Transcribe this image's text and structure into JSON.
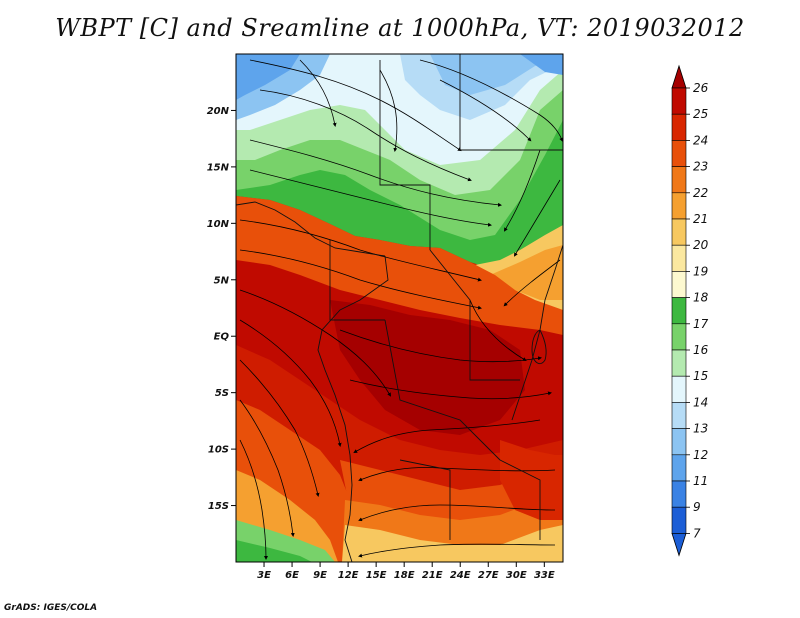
{
  "title": "WBPT [C] and Sreamline at 1000hPa, VT: 2019032012",
  "footer": "GrADS: IGES/COLA",
  "map": {
    "lon_range": [
      0,
      35
    ],
    "lat_range": [
      -20,
      25
    ],
    "lat_ticks": [
      {
        "value": 20,
        "label": "20N"
      },
      {
        "value": 15,
        "label": "15N"
      },
      {
        "value": 10,
        "label": "10N"
      },
      {
        "value": 5,
        "label": "5N"
      },
      {
        "value": 0,
        "label": "EQ"
      },
      {
        "value": -5,
        "label": "5S"
      },
      {
        "value": -10,
        "label": "10S"
      },
      {
        "value": -15,
        "label": "15S"
      }
    ],
    "lon_ticks": [
      {
        "value": 3,
        "label": "3E"
      },
      {
        "value": 6,
        "label": "6E"
      },
      {
        "value": 9,
        "label": "9E"
      },
      {
        "value": 12,
        "label": "12E"
      },
      {
        "value": 15,
        "label": "15E"
      },
      {
        "value": 18,
        "label": "18E"
      },
      {
        "value": 21,
        "label": "21E"
      },
      {
        "value": 24,
        "label": "24E"
      },
      {
        "value": 27,
        "label": "27E"
      },
      {
        "value": 30,
        "label": "30E"
      },
      {
        "value": 33,
        "label": "33E"
      }
    ]
  },
  "colorbar": {
    "levels": [
      {
        "label": "26",
        "color": "#a50000"
      },
      {
        "label": "25",
        "color": "#c00a00"
      },
      {
        "label": "24",
        "color": "#d82600"
      },
      {
        "label": "23",
        "color": "#e8500a"
      },
      {
        "label": "22",
        "color": "#f07818"
      },
      {
        "label": "21",
        "color": "#f5a030"
      },
      {
        "label": "20",
        "color": "#f7c860"
      },
      {
        "label": "19",
        "color": "#fbe8a0"
      },
      {
        "label": "18",
        "color": "#fdf9d0"
      },
      {
        "label": "17",
        "color": "#3db840"
      },
      {
        "label": "16",
        "color": "#78d26a"
      },
      {
        "label": "15",
        "color": "#b4eab0"
      },
      {
        "label": "14",
        "color": "#e4f6fc"
      },
      {
        "label": "13",
        "color": "#b6dcf6"
      },
      {
        "label": "12",
        "color": "#8cc4f2"
      },
      {
        "label": "11",
        "color": "#5ea4ec"
      },
      {
        "label": "9",
        "color": "#3a82e4"
      },
      {
        "label": "7",
        "color": "#1c5ed6"
      }
    ],
    "bottom_color": "#1c5ed6"
  }
}
